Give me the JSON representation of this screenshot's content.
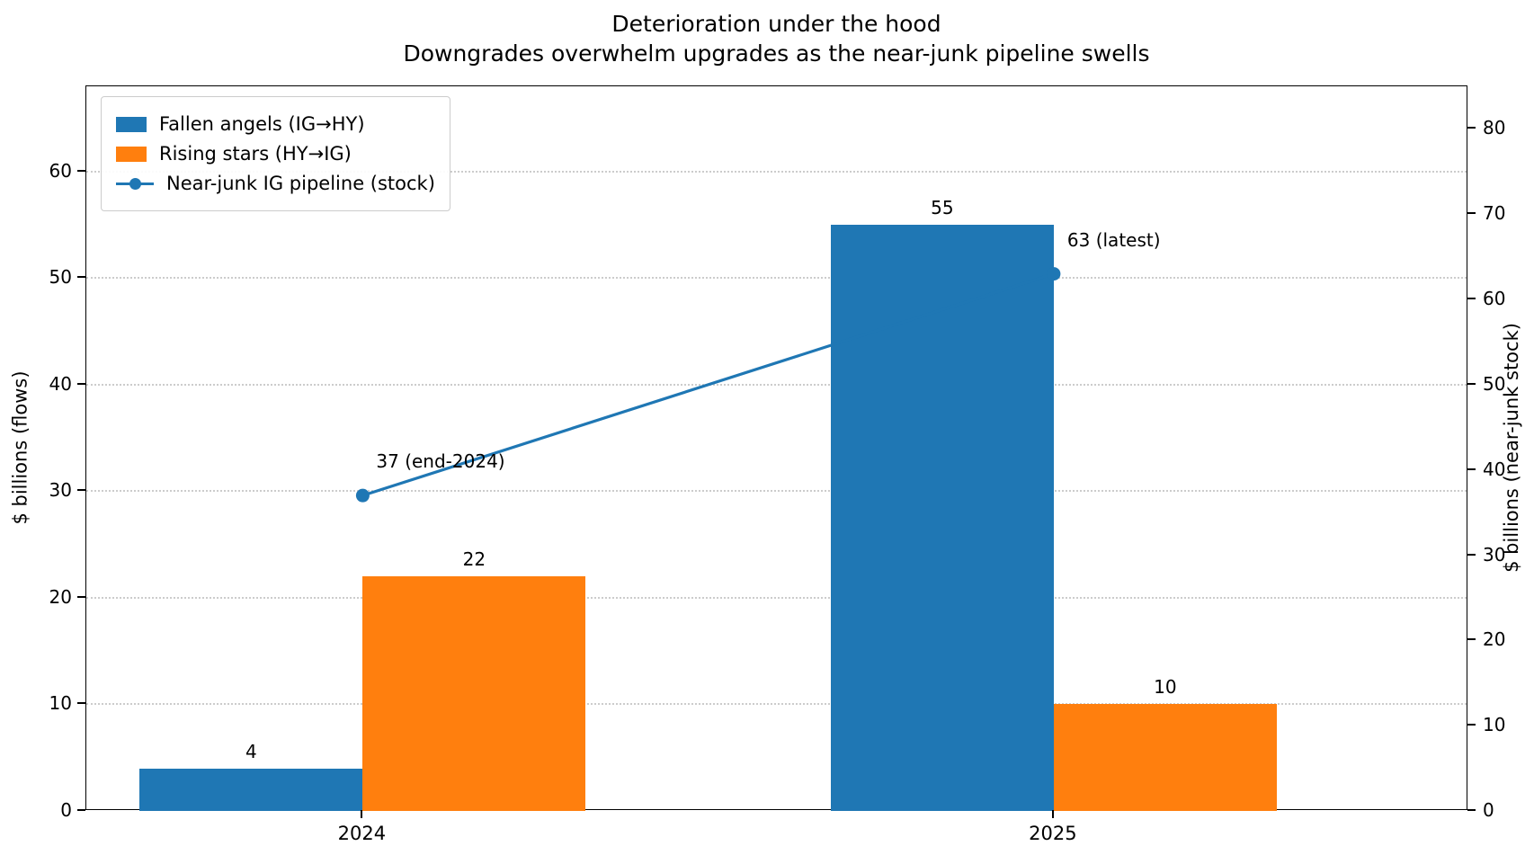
{
  "title": {
    "line1": "Deterioration under the hood",
    "line2": "Downgrades overwhelm upgrades as the near-junk pipeline swells"
  },
  "chart_data": {
    "type": "bar",
    "categories": [
      "2024",
      "2025"
    ],
    "series": [
      {
        "name": "Fallen angels (IG→HY)",
        "kind": "bar",
        "axis": "left",
        "color": "#1f77b4",
        "values": [
          4,
          55
        ],
        "value_labels": [
          "4",
          "55"
        ]
      },
      {
        "name": "Rising stars (HY→IG)",
        "kind": "bar",
        "axis": "left",
        "color": "#ff7f0e",
        "values": [
          22,
          10
        ],
        "value_labels": [
          "22",
          "10"
        ]
      },
      {
        "name": "Near-junk IG pipeline (stock)",
        "kind": "line",
        "axis": "right",
        "color": "#1f77b4",
        "values": [
          37,
          63
        ],
        "value_labels": [
          "37 (end-2024)",
          "63 (latest)"
        ]
      }
    ],
    "left_axis": {
      "label": "$ billions (flows)",
      "ticks": [
        0,
        10,
        20,
        30,
        40,
        50,
        60
      ],
      "ylim": [
        0,
        68
      ]
    },
    "right_axis": {
      "label": "$ billions (near-junk stock)",
      "ticks": [
        0,
        10,
        20,
        30,
        40,
        50,
        60,
        70,
        80
      ],
      "ylim": [
        0,
        85
      ]
    },
    "grid": "dotted horizontal",
    "legend_position": "upper left"
  }
}
